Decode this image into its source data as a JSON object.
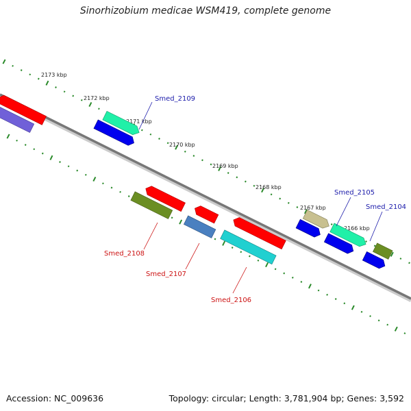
{
  "title": "Sinorhizobium medicae WSM419, complete genome",
  "accession": "Accession: NC_009636",
  "summary": "Topology: circular; Length: 3,781,904 bp; Genes: 3,592",
  "colors": {
    "backbone": "#777777",
    "tick": "#2a8a2a",
    "forward_label": "#1a1aaa",
    "reverse_label": "#cc1111"
  },
  "kbp_ticks": [
    "2173 kbp",
    "2172 kbp",
    "2171 kbp",
    "2170 kbp",
    "2169 kbp",
    "2168 kbp",
    "2167 kbp",
    "2166 kbp"
  ],
  "genes": [
    {
      "id": "Smed_2109",
      "strand": "forward",
      "label_color": "#1a1aaa"
    },
    {
      "id": "Smed_2105",
      "strand": "forward",
      "label_color": "#1a1aaa"
    },
    {
      "id": "Smed_2104",
      "strand": "forward",
      "label_color": "#1a1aaa"
    },
    {
      "id": "Smed_2108",
      "strand": "reverse",
      "label_color": "#cc1111"
    },
    {
      "id": "Smed_2107",
      "strand": "reverse",
      "label_color": "#cc1111"
    },
    {
      "id": "Smed_2106",
      "strand": "reverse",
      "label_color": "#cc1111"
    }
  ]
}
